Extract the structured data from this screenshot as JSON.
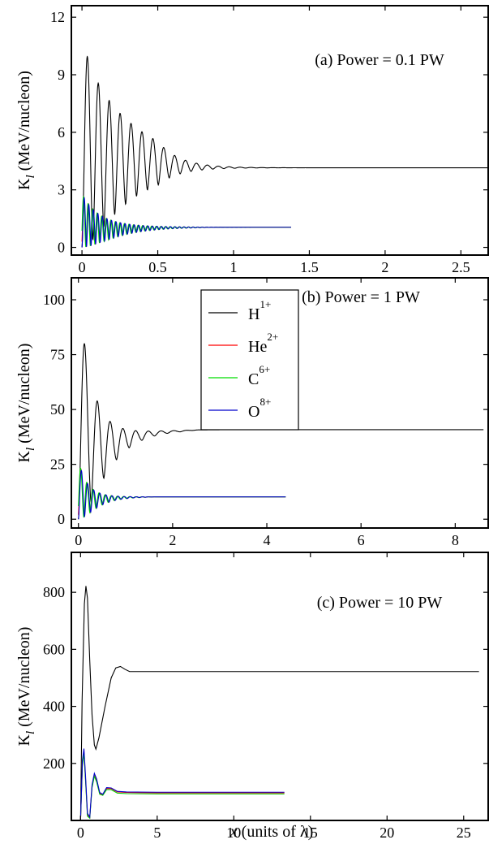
{
  "figure": {
    "xlabel_italic": "x",
    "xlabel_rest": " (units of λ)"
  },
  "chart_data": [
    {
      "type": "line",
      "panel": "a",
      "annotation": "(a) Power = 0.1 PW",
      "ylabel": "K_l (MeV/nucleon)",
      "xlim": [
        -0.07,
        2.68
      ],
      "ylim": [
        -0.4,
        12.6
      ],
      "xticks": [
        0,
        0.5,
        1,
        1.5,
        2,
        2.5
      ],
      "xtick_labels": [
        "0",
        "0.5",
        "1",
        "1.5",
        "2",
        "2.5"
      ],
      "yticks": [
        0,
        3,
        6,
        9,
        12
      ],
      "ytick_labels": [
        "0",
        "3",
        "6",
        "9",
        "12"
      ],
      "legend": "none",
      "series": [
        {
          "color": "#000000",
          "model": {
            "x0": 0,
            "end": 2.68,
            "amp": 11.0,
            "final": 4.15,
            "period": 0.072,
            "tau": 0.32,
            "flat": 0.2,
            "pts": 1400,
            "phase": 0
          }
        },
        {
          "color": "#ff0000",
          "model": {
            "x0": 0,
            "end": 1.38,
            "amp": 2.8,
            "final": 1.05,
            "period": 0.03,
            "tau": 0.18,
            "flat": 0.3,
            "pts": 1300,
            "phase": 0.5
          }
        },
        {
          "color": "#00dd00",
          "model": {
            "x0": 0,
            "end": 1.38,
            "amp": 2.8,
            "final": 1.05,
            "period": 0.03,
            "tau": 0.18,
            "flat": 0.3,
            "pts": 1300,
            "phase": 1.0
          }
        },
        {
          "color": "#0000cc",
          "model": {
            "x0": 0,
            "end": 1.38,
            "amp": 2.8,
            "final": 1.05,
            "period": 0.03,
            "tau": 0.18,
            "flat": 0.3,
            "pts": 1300,
            "phase": 0
          }
        }
      ]
    },
    {
      "type": "line",
      "panel": "b",
      "annotation": "(b) Power = 1 PW",
      "ylabel": "K_l (MeV/nucleon)",
      "xlim": [
        -0.15,
        8.7
      ],
      "ylim": [
        -4,
        110
      ],
      "xticks": [
        0,
        2,
        4,
        6,
        8
      ],
      "xtick_labels": [
        "0",
        "2",
        "4",
        "6",
        "8"
      ],
      "yticks": [
        0,
        25,
        50,
        75,
        100
      ],
      "ytick_labels": [
        "0",
        "25",
        "50",
        "75",
        "100"
      ],
      "legend": "top-center",
      "series": [
        {
          "name": "H",
          "sup": "1+",
          "color": "#000000",
          "model": {
            "x0": 0,
            "end": 8.6,
            "amp": 106,
            "final": 40.8,
            "period": 0.27,
            "tau": 0.42,
            "flat": 0.9,
            "pts": 1400,
            "phase": 0
          }
        },
        {
          "name": "He",
          "sup": "2+",
          "color": "#ff0000",
          "model": {
            "x0": 0,
            "end": 4.4,
            "amp": 27,
            "final": 10.2,
            "period": 0.13,
            "tau": 0.3,
            "flat": 0.55,
            "pts": 1300,
            "phase": 0.4
          }
        },
        {
          "name": "C",
          "sup": "6+",
          "color": "#00dd00",
          "model": {
            "x0": 0,
            "end": 4.4,
            "amp": 27,
            "final": 10.2,
            "period": 0.13,
            "tau": 0.3,
            "flat": 0.55,
            "pts": 1300,
            "phase": 0.8
          }
        },
        {
          "name": "O",
          "sup": "8+",
          "color": "#0000cc",
          "model": {
            "x0": 0,
            "end": 4.4,
            "amp": 27,
            "final": 10.2,
            "period": 0.13,
            "tau": 0.3,
            "flat": 0.55,
            "pts": 1300,
            "phase": 0
          }
        }
      ]
    },
    {
      "type": "line",
      "panel": "c",
      "annotation": "(c) Power = 10 PW",
      "ylabel": "K_l (MeV/nucleon)",
      "xlim": [
        -0.6,
        26.6
      ],
      "ylim": [
        0,
        940
      ],
      "xticks": [
        0,
        5,
        10,
        15,
        20,
        25
      ],
      "xtick_labels": [
        "0",
        "5",
        "10",
        "15",
        "20",
        "25"
      ],
      "yticks": [
        200,
        400,
        600,
        800
      ],
      "ytick_labels": [
        "200",
        "400",
        "600",
        "800"
      ],
      "legend": "none",
      "series": [
        {
          "color": "#000000",
          "points": [
            [
              0,
              0
            ],
            [
              0.1,
              420
            ],
            [
              0.25,
              760
            ],
            [
              0.35,
              822
            ],
            [
              0.45,
              780
            ],
            [
              0.6,
              560
            ],
            [
              0.75,
              370
            ],
            [
              0.9,
              265
            ],
            [
              1.0,
              250
            ],
            [
              1.2,
              290
            ],
            [
              1.6,
              400
            ],
            [
              2.0,
              500
            ],
            [
              2.3,
              535
            ],
            [
              2.6,
              540
            ],
            [
              2.9,
              530
            ],
            [
              3.2,
              522
            ],
            [
              4,
              522
            ],
            [
              10,
              522
            ],
            [
              20,
              522
            ],
            [
              26,
              522
            ]
          ]
        },
        {
          "color": "#ff0000",
          "points": [
            [
              0,
              0
            ],
            [
              0.12,
              200
            ],
            [
              0.22,
              240
            ],
            [
              0.32,
              150
            ],
            [
              0.45,
              20
            ],
            [
              0.6,
              10
            ],
            [
              0.75,
              120
            ],
            [
              0.9,
              160
            ],
            [
              1.05,
              140
            ],
            [
              1.25,
              95
            ],
            [
              1.45,
              90
            ],
            [
              1.7,
              112
            ],
            [
              2.0,
              112
            ],
            [
              2.4,
              100
            ],
            [
              3.0,
              98
            ],
            [
              5,
              97
            ],
            [
              13.3,
              97
            ]
          ]
        },
        {
          "color": "#00cc00",
          "points": [
            [
              0,
              0
            ],
            [
              0.12,
              195
            ],
            [
              0.22,
              235
            ],
            [
              0.32,
              145
            ],
            [
              0.45,
              15
            ],
            [
              0.6,
              8
            ],
            [
              0.75,
              115
            ],
            [
              0.9,
              155
            ],
            [
              1.05,
              135
            ],
            [
              1.25,
              92
            ],
            [
              1.45,
              88
            ],
            [
              1.7,
              108
            ],
            [
              2.0,
              108
            ],
            [
              2.4,
              96
            ],
            [
              3.0,
              94
            ],
            [
              5,
              93
            ],
            [
              13.3,
              93
            ]
          ]
        },
        {
          "color": "#0000cc",
          "points": [
            [
              0,
              0
            ],
            [
              0.12,
              210
            ],
            [
              0.22,
              252
            ],
            [
              0.32,
              160
            ],
            [
              0.45,
              25
            ],
            [
              0.6,
              12
            ],
            [
              0.75,
              125
            ],
            [
              0.9,
              165
            ],
            [
              1.05,
              145
            ],
            [
              1.25,
              98
            ],
            [
              1.45,
              92
            ],
            [
              1.7,
              115
            ],
            [
              2.0,
              114
            ],
            [
              2.4,
              102
            ],
            [
              3.0,
              100
            ],
            [
              5,
              99
            ],
            [
              13.3,
              99
            ]
          ]
        }
      ]
    }
  ]
}
